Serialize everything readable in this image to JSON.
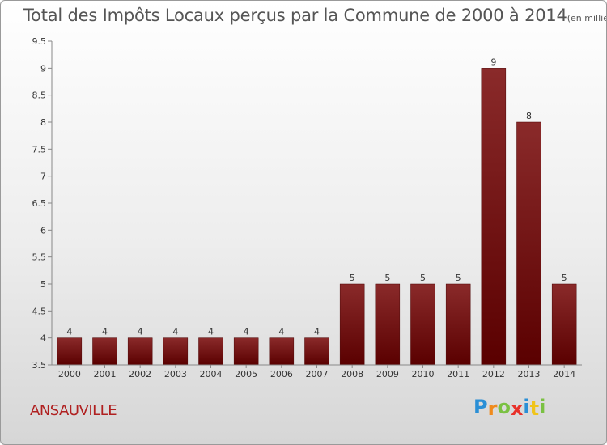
{
  "chart_data": {
    "type": "bar",
    "title": "Total des Impôts Locaux perçus par la Commune de 2000 à 2014",
    "title_unit": "(en milliers d'€)",
    "categories": [
      "2000",
      "2001",
      "2002",
      "2003",
      "2004",
      "2005",
      "2006",
      "2007",
      "2008",
      "2009",
      "2010",
      "2011",
      "2012",
      "2013",
      "2014"
    ],
    "values": [
      4,
      4,
      4,
      4,
      4,
      4,
      4,
      4,
      5,
      5,
      5,
      5,
      9,
      8,
      5
    ],
    "data_labels": [
      "4",
      "4",
      "4",
      "4",
      "4",
      "4",
      "4",
      "4",
      "5",
      "5",
      "5",
      "5",
      "9",
      "8",
      "5"
    ],
    "y_ticks": [
      "3.5",
      "4",
      "4.5",
      "5",
      "5.5",
      "6",
      "6.5",
      "7",
      "7.5",
      "8",
      "8.5",
      "9",
      "9.5"
    ],
    "ylim": [
      3.5,
      9.5
    ],
    "xlabel": "",
    "ylabel": "",
    "grid": false,
    "bar_color": "#6e0a0a"
  },
  "commune": "ANSAUVILLE",
  "logo": {
    "letters": [
      "P",
      "r",
      "o",
      "x",
      "i",
      "t",
      "i"
    ],
    "colors": [
      "#2a8fd6",
      "#f08a1c",
      "#7ac142",
      "#e8312a",
      "#2a8fd6",
      "#f0c419",
      "#7ac142"
    ]
  }
}
